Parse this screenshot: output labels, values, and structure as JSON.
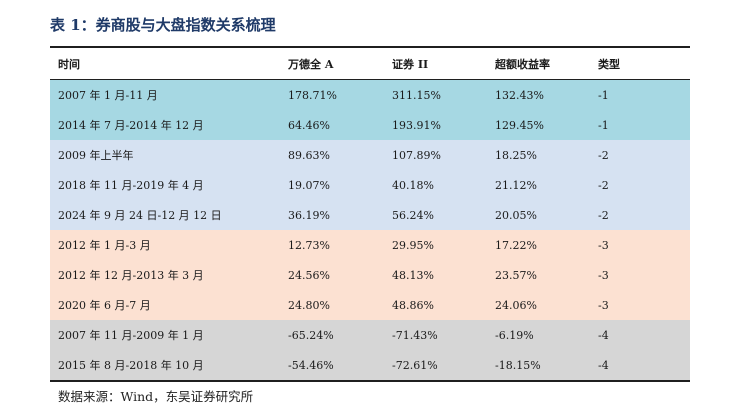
{
  "title": "表 1：券商股与大盘指数关系梳理",
  "columns": [
    "时间",
    "万德全 A",
    "证券 II",
    "超额收益率",
    "类型"
  ],
  "rows": [
    {
      "group": "g1",
      "cells": [
        "2007 年 1 月-11 月",
        "178.71%",
        "311.15%",
        "132.43%",
        "-1"
      ]
    },
    {
      "group": "g1",
      "cells": [
        "2014 年 7 月-2014 年 12 月",
        "64.46%",
        "193.91%",
        "129.45%",
        "-1"
      ]
    },
    {
      "group": "g2",
      "cells": [
        "2009 年上半年",
        "89.63%",
        "107.89%",
        "18.25%",
        "-2"
      ]
    },
    {
      "group": "g2",
      "cells": [
        "2018 年 11 月-2019 年 4 月",
        "19.07%",
        "40.18%",
        "21.12%",
        "-2"
      ]
    },
    {
      "group": "g2",
      "cells": [
        "2024 年 9 月 24 日-12 月 12 日",
        "36.19%",
        "56.24%",
        "20.05%",
        "-2"
      ]
    },
    {
      "group": "g3",
      "cells": [
        "2012 年 1 月-3 月",
        "12.73%",
        "29.95%",
        "17.22%",
        "-3"
      ]
    },
    {
      "group": "g3",
      "cells": [
        "2012 年 12 月-2013 年 3 月",
        "24.56%",
        "48.13%",
        "23.57%",
        "-3"
      ]
    },
    {
      "group": "g3",
      "cells": [
        "2020 年 6 月-7 月",
        "24.80%",
        "48.86%",
        "24.06%",
        "-3"
      ]
    },
    {
      "group": "g4",
      "cells": [
        "2007 年 11 月-2009 年 1 月",
        "-65.24%",
        "-71.43%",
        "-6.19%",
        "-4"
      ]
    },
    {
      "group": "g4",
      "cells": [
        "2015 年 8 月-2018 年 10 月",
        "-54.46%",
        "-72.61%",
        "-18.15%",
        "-4"
      ]
    }
  ],
  "colors": {
    "g1": "#a6d8e3",
    "g2": "#d6e2f2",
    "g3": "#fce1d2",
    "g4": "#d6d6d6",
    "title": "#1f3a68"
  },
  "source": "数据来源：Wind，东吴证券研究所"
}
